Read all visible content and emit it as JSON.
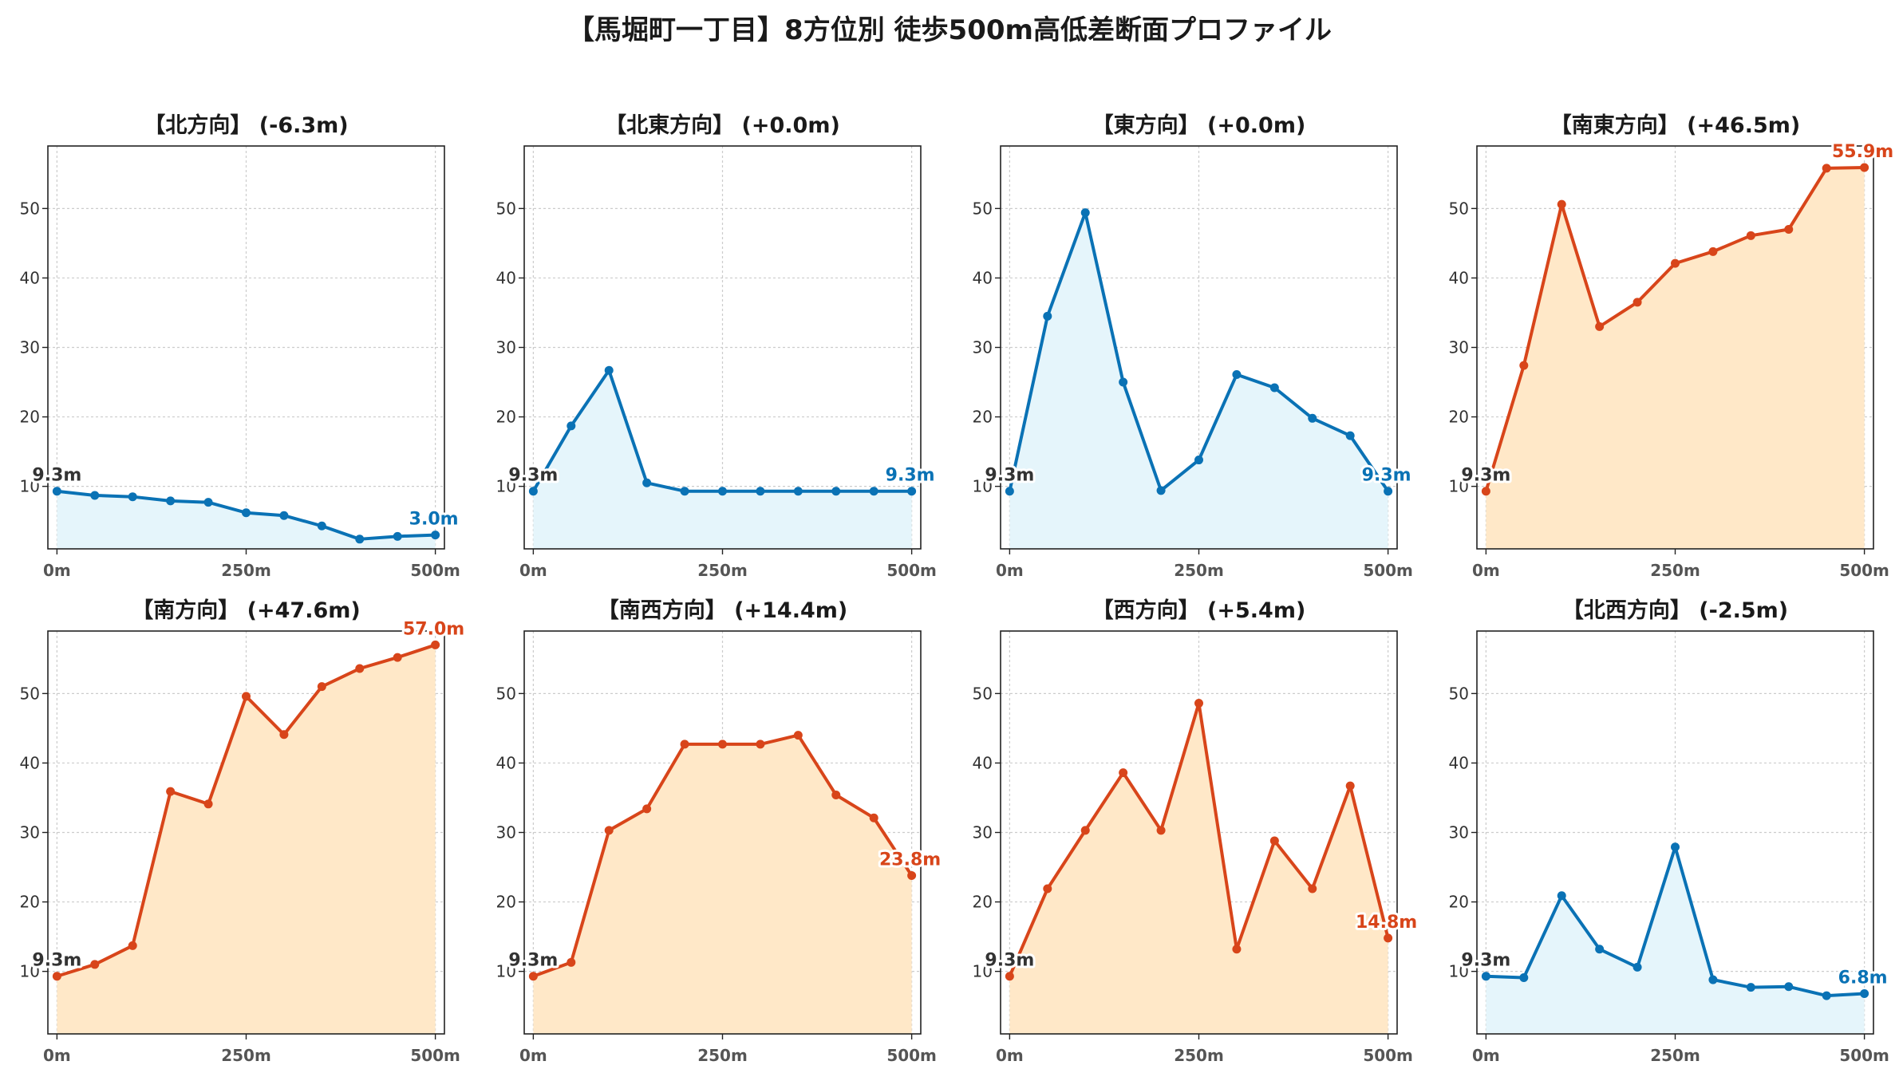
{
  "title": "【馬堀町一丁目】8方位別 徒歩500m高低差断面プロファイル",
  "colors": {
    "up": "#d8451a",
    "down": "#0a72b5",
    "upFill": "#ffe8c8",
    "downFill": "#e5f5fb"
  },
  "chart_data": [
    {
      "type": "area",
      "title": "【北方向】 (-6.3m)",
      "trend": "down",
      "x": [
        0,
        50,
        100,
        150,
        200,
        250,
        300,
        350,
        400,
        450,
        500
      ],
      "xticks": [
        "0m",
        "250m",
        "500m"
      ],
      "yticks": [
        "10",
        "20",
        "30",
        "40",
        "50"
      ],
      "ylim": [
        1,
        59
      ],
      "grid": true,
      "values": [
        9.3,
        8.7,
        8.5,
        7.9,
        7.7,
        6.2,
        5.8,
        4.3,
        2.4,
        2.8,
        3.0
      ],
      "start_label": "9.3m",
      "end_label": "3.0m"
    },
    {
      "type": "area",
      "title": "【北東方向】 (+0.0m)",
      "trend": "down",
      "x": [
        0,
        50,
        100,
        150,
        200,
        250,
        300,
        350,
        400,
        450,
        500
      ],
      "xticks": [
        "0m",
        "250m",
        "500m"
      ],
      "yticks": [
        "10",
        "20",
        "30",
        "40",
        "50"
      ],
      "ylim": [
        1,
        59
      ],
      "grid": true,
      "values": [
        9.3,
        18.7,
        26.7,
        10.5,
        9.3,
        9.3,
        9.3,
        9.3,
        9.3,
        9.3,
        9.3
      ],
      "start_label": "9.3m",
      "end_label": "9.3m"
    },
    {
      "type": "area",
      "title": "【東方向】 (+0.0m)",
      "trend": "down",
      "x": [
        0,
        50,
        100,
        150,
        200,
        250,
        300,
        350,
        400,
        450,
        500
      ],
      "xticks": [
        "0m",
        "250m",
        "500m"
      ],
      "yticks": [
        "10",
        "20",
        "30",
        "40",
        "50"
      ],
      "ylim": [
        1,
        59
      ],
      "grid": true,
      "values": [
        9.3,
        34.5,
        49.4,
        25.0,
        9.4,
        13.8,
        26.1,
        24.2,
        19.8,
        17.3,
        9.3
      ],
      "start_label": "9.3m",
      "end_label": "9.3m"
    },
    {
      "type": "area",
      "title": "【南東方向】 (+46.5m)",
      "trend": "up",
      "x": [
        0,
        50,
        100,
        150,
        200,
        250,
        300,
        350,
        400,
        450,
        500
      ],
      "xticks": [
        "0m",
        "250m",
        "500m"
      ],
      "yticks": [
        "10",
        "20",
        "30",
        "40",
        "50"
      ],
      "ylim": [
        1,
        59
      ],
      "grid": true,
      "values": [
        9.3,
        27.4,
        50.6,
        33.0,
        36.5,
        42.1,
        43.8,
        46.1,
        47.0,
        55.8,
        55.9
      ],
      "start_label": "9.3m",
      "end_label": "55.9m"
    },
    {
      "type": "area",
      "title": "【南方向】 (+47.6m)",
      "trend": "up",
      "x": [
        0,
        50,
        100,
        150,
        200,
        250,
        300,
        350,
        400,
        450,
        500
      ],
      "xticks": [
        "0m",
        "250m",
        "500m"
      ],
      "yticks": [
        "10",
        "20",
        "30",
        "40",
        "50"
      ],
      "ylim": [
        1,
        59
      ],
      "grid": true,
      "values": [
        9.3,
        11.0,
        13.7,
        35.9,
        34.1,
        49.6,
        44.1,
        51.0,
        53.6,
        55.2,
        57.0
      ],
      "start_label": "9.3m",
      "end_label": "57.0m"
    },
    {
      "type": "area",
      "title": "【南西方向】 (+14.4m)",
      "trend": "up",
      "x": [
        0,
        50,
        100,
        150,
        200,
        250,
        300,
        350,
        400,
        450,
        500
      ],
      "xticks": [
        "0m",
        "250m",
        "500m"
      ],
      "yticks": [
        "10",
        "20",
        "30",
        "40",
        "50"
      ],
      "ylim": [
        1,
        59
      ],
      "grid": true,
      "values": [
        9.3,
        11.3,
        30.3,
        33.4,
        42.7,
        42.7,
        42.7,
        44.0,
        35.4,
        32.1,
        23.8
      ],
      "start_label": "9.3m",
      "end_label": "23.8m"
    },
    {
      "type": "area",
      "title": "【西方向】 (+5.4m)",
      "trend": "up",
      "x": [
        0,
        50,
        100,
        150,
        200,
        250,
        300,
        350,
        400,
        450,
        500
      ],
      "xticks": [
        "0m",
        "250m",
        "500m"
      ],
      "yticks": [
        "10",
        "20",
        "30",
        "40",
        "50"
      ],
      "ylim": [
        1,
        59
      ],
      "grid": true,
      "values": [
        9.3,
        21.9,
        30.3,
        38.6,
        30.3,
        48.6,
        13.2,
        28.8,
        21.9,
        36.7,
        14.8
      ],
      "start_label": "9.3m",
      "end_label": "14.8m"
    },
    {
      "type": "area",
      "title": "【北西方向】 (-2.5m)",
      "trend": "down",
      "x": [
        0,
        50,
        100,
        150,
        200,
        250,
        300,
        350,
        400,
        450,
        500
      ],
      "xticks": [
        "0m",
        "250m",
        "500m"
      ],
      "yticks": [
        "10",
        "20",
        "30",
        "40",
        "50"
      ],
      "ylim": [
        1,
        59
      ],
      "grid": true,
      "values": [
        9.3,
        9.1,
        20.9,
        13.2,
        10.6,
        27.9,
        8.8,
        7.7,
        7.8,
        6.5,
        6.8
      ],
      "start_label": "9.3m",
      "end_label": "6.8m"
    }
  ]
}
